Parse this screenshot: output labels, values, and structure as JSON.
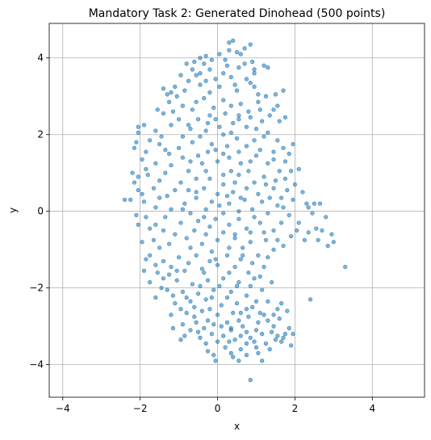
{
  "chart_data": {
    "type": "scatter",
    "title": "Mandatory Task 2: Generated Dinohead (500 points)",
    "xlabel": "x",
    "ylabel": "y",
    "xlim": [
      -4.35,
      5.35
    ],
    "ylim": [
      -4.85,
      4.9
    ],
    "xticks": [
      -4,
      -2,
      0,
      2,
      4
    ],
    "yticks": [
      -4,
      -2,
      0,
      2,
      4
    ],
    "xtick_labels": [
      "−4",
      "−2",
      "0",
      "2",
      "4"
    ],
    "ytick_labels": [
      "−4",
      "−2",
      "0",
      "2",
      "4"
    ],
    "grid": true,
    "color": "#1f77b4",
    "points": [
      [
        0.4,
        4.45
      ],
      [
        0.85,
        4.35
      ],
      [
        0.3,
        4.2
      ],
      [
        0.5,
        4.15
      ],
      [
        -0.3,
        4.05
      ],
      [
        0.05,
        4.1
      ],
      [
        0.9,
        3.9
      ],
      [
        0.7,
        3.85
      ],
      [
        -0.6,
        3.9
      ],
      [
        -0.8,
        3.85
      ],
      [
        0.55,
        3.75
      ],
      [
        1.3,
        3.75
      ],
      [
        1.2,
        3.8
      ],
      [
        -0.2,
        3.7
      ],
      [
        -0.55,
        3.55
      ],
      [
        -0.45,
        3.6
      ],
      [
        0.35,
        3.5
      ],
      [
        0.75,
        3.45
      ],
      [
        -0.05,
        3.45
      ],
      [
        -1.1,
        3.25
      ],
      [
        -1.2,
        3.1
      ],
      [
        -1.3,
        3.05
      ],
      [
        -1.4,
        3.2
      ],
      [
        0.95,
        3.25
      ],
      [
        1.25,
        3.0
      ],
      [
        1.05,
        2.85
      ],
      [
        -0.35,
        2.95
      ],
      [
        0.15,
        2.9
      ],
      [
        -0.9,
        2.75
      ],
      [
        -0.65,
        2.65
      ],
      [
        1.7,
        3.15
      ],
      [
        1.55,
        2.75
      ],
      [
        1.45,
        2.65
      ],
      [
        0.2,
        2.55
      ],
      [
        -0.2,
        2.5
      ],
      [
        0.55,
        2.5
      ],
      [
        0.85,
        2.45
      ],
      [
        -1.4,
        2.55
      ],
      [
        -1.0,
        2.4
      ],
      [
        -0.5,
        2.4
      ],
      [
        -1.2,
        2.25
      ],
      [
        -1.9,
        2.25
      ],
      [
        -2.05,
        2.2
      ],
      [
        0.4,
        2.3
      ],
      [
        0.75,
        2.2
      ],
      [
        1.15,
        2.35
      ],
      [
        1.6,
        2.35
      ],
      [
        -0.7,
        2.15
      ],
      [
        0.05,
        2.2
      ],
      [
        -0.3,
        2.1
      ],
      [
        -2.1,
        1.8
      ],
      [
        -2.15,
        1.65
      ],
      [
        -1.85,
        1.55
      ],
      [
        -1.5,
        1.75
      ],
      [
        -1.25,
        1.5
      ],
      [
        1.95,
        1.75
      ],
      [
        1.85,
        1.5
      ],
      [
        1.7,
        1.65
      ],
      [
        1.45,
        1.35
      ],
      [
        -0.65,
        1.8
      ],
      [
        -0.15,
        1.75
      ],
      [
        0.25,
        1.7
      ],
      [
        0.55,
        1.55
      ],
      [
        1.1,
        1.6
      ],
      [
        -0.9,
        1.4
      ],
      [
        -0.5,
        1.45
      ],
      [
        0.0,
        1.3
      ],
      [
        0.3,
        1.4
      ],
      [
        0.85,
        1.3
      ],
      [
        -1.6,
        1.25
      ],
      [
        -2.2,
        1.0
      ],
      [
        -2.05,
        0.9
      ],
      [
        -1.8,
        0.95
      ],
      [
        -1.35,
        1.0
      ],
      [
        -0.75,
        1.05
      ],
      [
        -0.3,
        1.05
      ],
      [
        0.15,
        0.95
      ],
      [
        0.55,
        0.95
      ],
      [
        1.2,
        0.9
      ],
      [
        1.6,
        1.05
      ],
      [
        1.9,
        1.05
      ],
      [
        2.1,
        1.1
      ],
      [
        -2.05,
        0.55
      ],
      [
        -1.65,
        0.6
      ],
      [
        -1.1,
        0.55
      ],
      [
        -0.55,
        0.5
      ],
      [
        0.0,
        0.45
      ],
      [
        0.4,
        0.5
      ],
      [
        0.75,
        0.6
      ],
      [
        1.05,
        0.45
      ],
      [
        1.45,
        0.6
      ],
      [
        1.8,
        0.55
      ],
      [
        2.2,
        0.5
      ],
      [
        -2.4,
        0.3
      ],
      [
        -2.25,
        0.3
      ],
      [
        -1.9,
        0.25
      ],
      [
        -1.5,
        0.35
      ],
      [
        -0.85,
        0.2
      ],
      [
        -0.55,
        0.35
      ],
      [
        -0.15,
        0.25
      ],
      [
        0.3,
        0.2
      ],
      [
        0.7,
        0.3
      ],
      [
        1.15,
        0.25
      ],
      [
        1.55,
        0.15
      ],
      [
        2.3,
        0.2
      ],
      [
        2.5,
        0.2
      ],
      [
        2.65,
        0.2
      ],
      [
        -1.2,
        0.05
      ],
      [
        -0.7,
        -0.05
      ],
      [
        -0.3,
        0.05
      ],
      [
        0.15,
        -0.05
      ],
      [
        0.55,
        0.0
      ],
      [
        0.9,
        0.05
      ],
      [
        1.3,
        -0.05
      ],
      [
        1.85,
        -0.1
      ],
      [
        2.45,
        -0.05
      ],
      [
        2.8,
        -0.15
      ],
      [
        -2.05,
        -0.35
      ],
      [
        -1.75,
        -0.45
      ],
      [
        -1.4,
        -0.5
      ],
      [
        -0.95,
        -0.3
      ],
      [
        -0.6,
        -0.5
      ],
      [
        -0.2,
        -0.4
      ],
      [
        0.3,
        -0.35
      ],
      [
        0.75,
        -0.45
      ],
      [
        1.1,
        -0.3
      ],
      [
        1.45,
        -0.5
      ],
      [
        2.05,
        -0.5
      ],
      [
        2.55,
        -0.45
      ],
      [
        2.7,
        -0.5
      ],
      [
        2.95,
        -0.6
      ],
      [
        -1.95,
        -0.8
      ],
      [
        -1.65,
        -0.75
      ],
      [
        -1.25,
        -0.85
      ],
      [
        -0.8,
        -0.7
      ],
      [
        -0.4,
        -0.85
      ],
      [
        0.0,
        -0.75
      ],
      [
        0.45,
        -0.7
      ],
      [
        0.85,
        -0.8
      ],
      [
        1.25,
        -0.75
      ],
      [
        1.7,
        -0.9
      ],
      [
        2.25,
        -0.75
      ],
      [
        2.85,
        -0.9
      ],
      [
        3.0,
        -0.8
      ],
      [
        3.3,
        -1.45
      ],
      [
        -1.75,
        -1.15
      ],
      [
        -1.4,
        -1.3
      ],
      [
        -1.0,
        -1.2
      ],
      [
        -0.55,
        -1.15
      ],
      [
        -0.15,
        -1.05
      ],
      [
        0.25,
        -1.15
      ],
      [
        0.6,
        -1.25
      ],
      [
        1.05,
        -1.15
      ],
      [
        1.45,
        -1.0
      ],
      [
        -1.9,
        -1.55
      ],
      [
        -1.55,
        -1.6
      ],
      [
        -1.2,
        -1.45
      ],
      [
        -0.85,
        -1.55
      ],
      [
        -0.4,
        -1.5
      ],
      [
        0.0,
        -1.4
      ],
      [
        0.45,
        -1.45
      ],
      [
        0.8,
        -1.6
      ],
      [
        1.2,
        -1.45
      ],
      [
        -1.75,
        -1.85
      ],
      [
        -1.4,
        -1.75
      ],
      [
        -1.05,
        -1.8
      ],
      [
        -0.65,
        -1.9
      ],
      [
        -0.25,
        -1.8
      ],
      [
        0.15,
        -1.75
      ],
      [
        0.55,
        -1.85
      ],
      [
        0.95,
        -1.75
      ],
      [
        -1.3,
        -2.05
      ],
      [
        -0.9,
        -2.1
      ],
      [
        -0.5,
        -2.15
      ],
      [
        -0.1,
        -2.05
      ],
      [
        0.35,
        -2.1
      ],
      [
        0.75,
        -2.2
      ],
      [
        1.15,
        -2.05
      ],
      [
        -1.6,
        -2.25
      ],
      [
        -1.1,
        -2.4
      ],
      [
        -0.7,
        -2.35
      ],
      [
        -0.3,
        -2.3
      ],
      [
        0.1,
        -2.45
      ],
      [
        0.5,
        -2.4
      ],
      [
        0.9,
        -2.5
      ],
      [
        1.3,
        -2.35
      ],
      [
        1.65,
        -2.4
      ],
      [
        2.4,
        -2.3
      ],
      [
        -1.2,
        -2.7
      ],
      [
        -0.8,
        -2.65
      ],
      [
        -0.4,
        -2.6
      ],
      [
        0.0,
        -2.7
      ],
      [
        0.4,
        -2.65
      ],
      [
        0.8,
        -2.75
      ],
      [
        1.2,
        -2.7
      ],
      [
        1.55,
        -2.55
      ],
      [
        1.8,
        -2.6
      ],
      [
        -0.9,
        -2.95
      ],
      [
        -0.55,
        -2.9
      ],
      [
        -0.1,
        -2.95
      ],
      [
        0.25,
        -2.9
      ],
      [
        0.65,
        -3.0
      ],
      [
        1.05,
        -2.9
      ],
      [
        1.45,
        -3.0
      ],
      [
        1.85,
        -3.05
      ],
      [
        -1.15,
        -3.05
      ],
      [
        -0.5,
        -3.15
      ],
      [
        -0.15,
        -3.2
      ],
      [
        0.35,
        -3.1
      ],
      [
        0.75,
        -3.15
      ],
      [
        1.15,
        -3.2
      ],
      [
        1.55,
        -3.25
      ],
      [
        1.95,
        -3.2
      ],
      [
        -0.85,
        -3.25
      ],
      [
        0.0,
        -3.4
      ],
      [
        0.45,
        -3.35
      ],
      [
        0.85,
        -3.3
      ],
      [
        1.25,
        -3.45
      ],
      [
        1.65,
        -3.4
      ],
      [
        1.9,
        -3.5
      ],
      [
        -0.3,
        -3.45
      ],
      [
        0.2,
        -3.55
      ],
      [
        0.6,
        -3.6
      ],
      [
        1.0,
        -3.55
      ],
      [
        1.35,
        -3.6
      ],
      [
        -0.1,
        -3.75
      ],
      [
        0.35,
        -3.7
      ],
      [
        0.75,
        -3.75
      ],
      [
        1.15,
        -3.9
      ],
      [
        -0.05,
        -3.9
      ],
      [
        0.85,
        -4.4
      ],
      [
        0.6,
        4.1
      ],
      [
        0.2,
        3.95
      ],
      [
        -0.35,
        3.85
      ],
      [
        0.95,
        3.6
      ],
      [
        -0.75,
        3.4
      ],
      [
        0.45,
        3.3
      ],
      [
        -1.05,
        3.0
      ],
      [
        0.6,
        2.8
      ],
      [
        -0.1,
        2.7
      ],
      [
        1.1,
        2.65
      ],
      [
        -1.6,
        2.1
      ],
      [
        0.35,
        2.05
      ],
      [
        1.3,
        2.05
      ],
      [
        -0.9,
        1.95
      ],
      [
        0.95,
        1.85
      ],
      [
        -1.95,
        1.35
      ],
      [
        -0.25,
        1.55
      ],
      [
        1.45,
        1.55
      ],
      [
        0.6,
        1.25
      ],
      [
        -1.2,
        1.2
      ],
      [
        1.75,
        0.85
      ],
      [
        -0.95,
        0.75
      ],
      [
        0.15,
        0.7
      ],
      [
        0.95,
        0.75
      ],
      [
        -1.6,
        0.1
      ],
      [
        1.95,
        0.3
      ],
      [
        -0.35,
        -0.15
      ],
      [
        0.55,
        -0.2
      ],
      [
        1.65,
        -0.3
      ],
      [
        -1.1,
        -0.6
      ],
      [
        0.15,
        -0.55
      ],
      [
        1.9,
        -0.65
      ],
      [
        -0.2,
        -1.3
      ],
      [
        0.9,
        -1.35
      ],
      [
        -1.25,
        -1.65
      ],
      [
        0.3,
        -1.6
      ],
      [
        -0.45,
        -1.95
      ],
      [
        1.4,
        -1.85
      ],
      [
        -0.95,
        -2.55
      ],
      [
        0.25,
        -2.25
      ],
      [
        1.0,
        -2.35
      ],
      [
        -0.6,
        -2.75
      ],
      [
        0.55,
        -2.85
      ],
      [
        1.3,
        -2.85
      ],
      [
        -0.35,
        -3.05
      ],
      [
        1.0,
        -3.1
      ],
      [
        0.15,
        -3.25
      ],
      [
        1.5,
        -3.35
      ],
      [
        0.55,
        -3.9
      ],
      [
        0.3,
        4.4
      ],
      [
        -0.15,
        3.95
      ],
      [
        -0.45,
        3.3
      ],
      [
        0.05,
        3.25
      ],
      [
        -0.85,
        3.15
      ],
      [
        1.05,
        3.05
      ],
      [
        -1.55,
        2.65
      ],
      [
        0.8,
        2.6
      ],
      [
        -0.05,
        2.4
      ],
      [
        1.75,
        2.45
      ],
      [
        -1.75,
        1.85
      ],
      [
        -0.4,
        1.25
      ],
      [
        1.3,
        1.25
      ],
      [
        -2.15,
        0.75
      ],
      [
        0.35,
        1.05
      ],
      [
        -0.75,
        0.55
      ],
      [
        1.35,
        0.35
      ],
      [
        -1.85,
        -0.15
      ],
      [
        0.05,
        0.15
      ],
      [
        2.35,
        0.1
      ],
      [
        -0.5,
        -0.25
      ],
      [
        1.2,
        -0.55
      ],
      [
        2.6,
        -0.75
      ],
      [
        -1.5,
        -0.95
      ],
      [
        0.65,
        -0.95
      ],
      [
        -0.75,
        -1.35
      ],
      [
        1.1,
        -1.7
      ],
      [
        -1.45,
        -2.0
      ],
      [
        0.05,
        -1.95
      ],
      [
        -0.2,
        -2.55
      ],
      [
        1.45,
        -2.7
      ],
      [
        -0.7,
        -3.1
      ],
      [
        0.35,
        -3.05
      ],
      [
        1.75,
        -3.2
      ],
      [
        0.75,
        -3.45
      ],
      [
        0.95,
        3.7
      ],
      [
        -0.65,
        3.7
      ],
      [
        0.15,
        3.6
      ],
      [
        0.5,
        3.15
      ],
      [
        -0.2,
        3.1
      ],
      [
        -1.25,
        2.85
      ],
      [
        1.35,
        2.5
      ],
      [
        -0.75,
        2.25
      ],
      [
        0.15,
        2.0
      ],
      [
        -1.45,
        1.95
      ],
      [
        1.2,
        1.95
      ],
      [
        -0.05,
        1.6
      ],
      [
        0.75,
        1.7
      ],
      [
        -1.0,
        1.65
      ],
      [
        1.75,
        1.3
      ],
      [
        -1.85,
        1.1
      ],
      [
        -0.55,
        0.85
      ],
      [
        0.45,
        0.75
      ],
      [
        1.5,
        0.8
      ],
      [
        -1.3,
        0.4
      ],
      [
        0.25,
        0.4
      ],
      [
        1.65,
        0.35
      ],
      [
        -2.1,
        -0.1
      ],
      [
        -0.9,
        0.05
      ],
      [
        0.95,
        -0.15
      ],
      [
        2.1,
        -0.3
      ],
      [
        -1.6,
        -0.35
      ],
      [
        -0.3,
        -0.6
      ],
      [
        0.45,
        -0.6
      ],
      [
        1.55,
        -0.75
      ],
      [
        -1.85,
        -1.25
      ],
      [
        -0.05,
        -1.25
      ],
      [
        0.65,
        -1.15
      ],
      [
        -1.05,
        -1.55
      ],
      [
        0.5,
        -1.95
      ],
      [
        -0.8,
        -2.25
      ],
      [
        0.75,
        -2.55
      ],
      [
        -0.25,
        -2.85
      ],
      [
        1.1,
        -2.65
      ],
      [
        -0.95,
        -3.35
      ],
      [
        0.3,
        -3.4
      ],
      [
        1.4,
        -3.15
      ],
      [
        0.6,
        -3.25
      ],
      [
        1.05,
        -3.7
      ],
      [
        -0.25,
        -3.65
      ],
      [
        0.7,
        4.25
      ],
      [
        -0.45,
        4.0
      ],
      [
        0.25,
        3.8
      ],
      [
        -0.95,
        3.55
      ],
      [
        0.85,
        3.35
      ],
      [
        -0.3,
        3.4
      ],
      [
        1.5,
        3.05
      ],
      [
        -0.55,
        2.85
      ],
      [
        0.35,
        2.75
      ],
      [
        -1.15,
        2.6
      ],
      [
        0.55,
        2.4
      ],
      [
        -0.25,
        2.3
      ],
      [
        1.0,
        2.15
      ],
      [
        -2.05,
        2.05
      ],
      [
        -0.45,
        1.95
      ],
      [
        0.5,
        1.9
      ],
      [
        1.55,
        1.85
      ],
      [
        -1.35,
        1.6
      ],
      [
        0.15,
        1.5
      ],
      [
        1.0,
        1.45
      ],
      [
        -0.7,
        1.3
      ],
      [
        -1.5,
        0.8
      ],
      [
        0.8,
        1.05
      ],
      [
        -0.2,
        0.85
      ],
      [
        1.25,
        0.7
      ],
      [
        2.0,
        0.7
      ],
      [
        -1.95,
        0.45
      ],
      [
        -0.35,
        0.6
      ],
      [
        0.6,
        0.35
      ],
      [
        1.7,
        0.1
      ],
      [
        -1.35,
        -0.15
      ],
      [
        -0.05,
        -0.2
      ],
      [
        0.85,
        -0.55
      ],
      [
        2.35,
        -0.55
      ],
      [
        -0.7,
        -0.95
      ],
      [
        0.3,
        -0.95
      ],
      [
        1.3,
        -1.2
      ],
      [
        -1.6,
        -1.4
      ],
      [
        -0.35,
        -1.6
      ],
      [
        0.85,
        -1.95
      ],
      [
        -1.15,
        -2.2
      ],
      [
        -0.15,
        -2.25
      ],
      [
        0.6,
        -2.65
      ],
      [
        1.6,
        -2.8
      ],
      [
        -0.45,
        -3.3
      ],
      [
        0.95,
        -3.4
      ],
      [
        0.4,
        -3.8
      ],
      [
        1.7,
        -3.3
      ],
      [
        -0.6,
        -2.5
      ],
      [
        0.1,
        -3.0
      ]
    ]
  }
}
